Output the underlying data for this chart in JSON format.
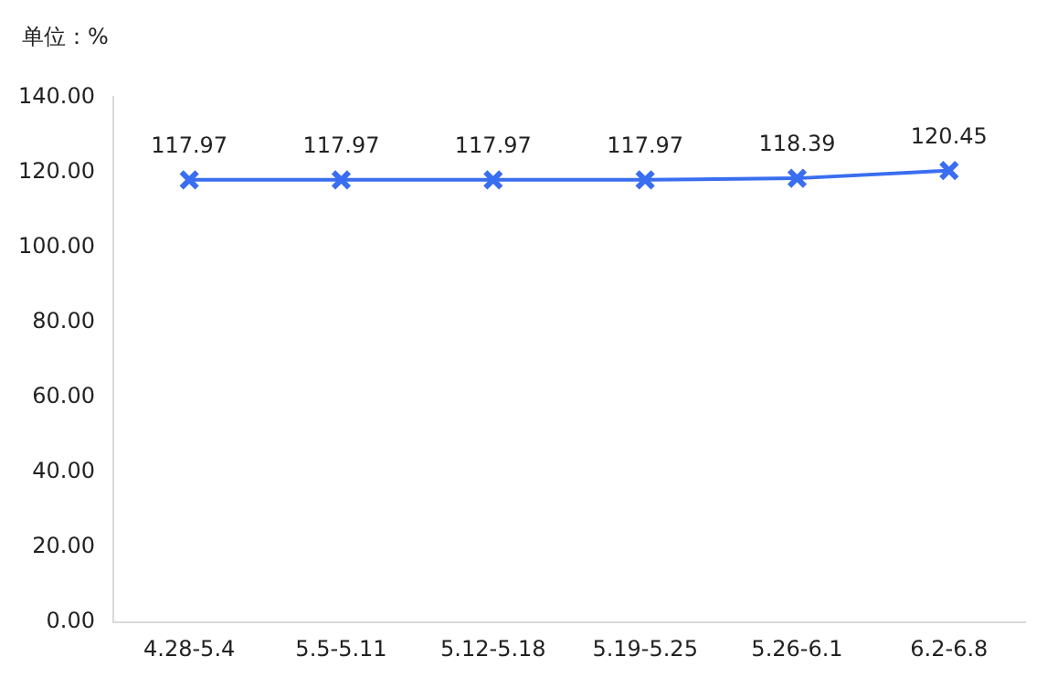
{
  "chart_data": {
    "type": "line",
    "ylabel": "单位：%",
    "categories": [
      "4.28-5.4",
      "5.5-5.11",
      "5.12-5.18",
      "5.19-5.25",
      "5.26-6.1",
      "6.2-6.8"
    ],
    "series": [
      {
        "color": "#3a6ef0",
        "values": [
          117.97,
          117.97,
          117.97,
          117.97,
          118.39,
          120.45
        ]
      }
    ],
    "ylim": [
      0,
      140
    ],
    "yticks": [
      {
        "value": 0,
        "label": "0.00"
      },
      {
        "value": 20,
        "label": "20.00"
      },
      {
        "value": 40,
        "label": "40.00"
      },
      {
        "value": 60,
        "label": "60.00"
      },
      {
        "value": 80,
        "label": "80.00"
      },
      {
        "value": 100,
        "label": "100.00"
      },
      {
        "value": 120,
        "label": "120.00"
      },
      {
        "value": 140,
        "label": "140.00"
      }
    ],
    "grid": false,
    "legend": false,
    "marker": "cross",
    "line_style": "solid",
    "data_labels": true
  }
}
